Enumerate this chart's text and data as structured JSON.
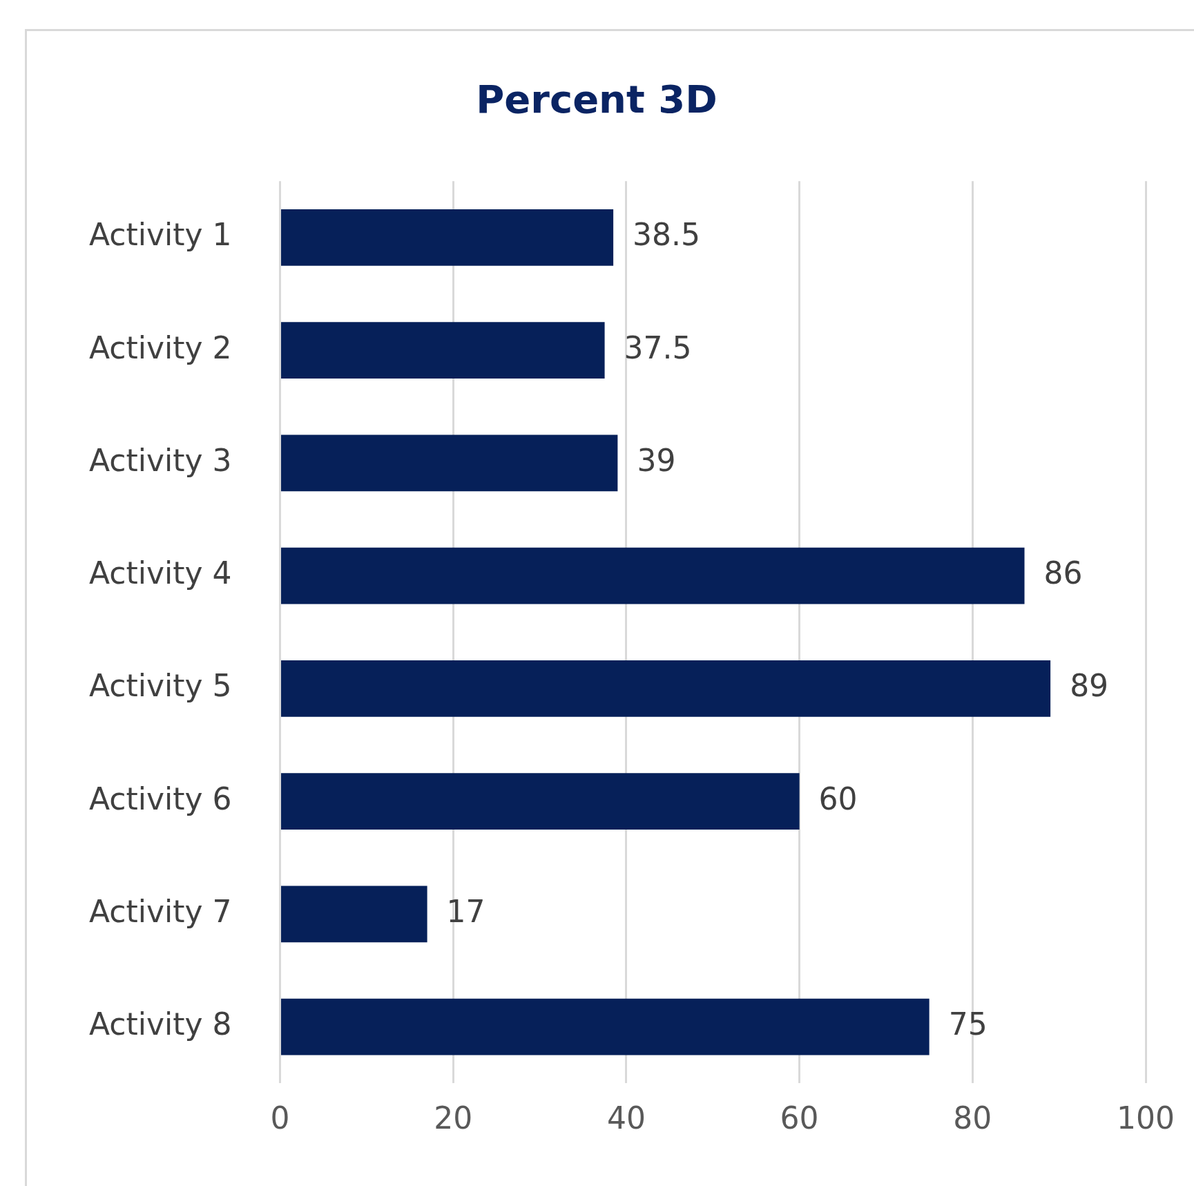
{
  "chart_data": {
    "type": "bar",
    "orientation": "horizontal",
    "title": "Percent 3D",
    "categories": [
      "Activity 1",
      "Activity 2",
      "Activity 3",
      "Activity 4",
      "Activity 5",
      "Activity 6",
      "Activity 7",
      "Activity 8"
    ],
    "values": [
      38.5,
      37.5,
      39,
      86,
      89,
      60,
      17,
      75
    ],
    "color": "#062059",
    "xlim": [
      0,
      100
    ],
    "xticks": [
      0,
      20,
      40,
      60,
      80,
      100
    ],
    "grid": "x",
    "data_labels": true
  }
}
